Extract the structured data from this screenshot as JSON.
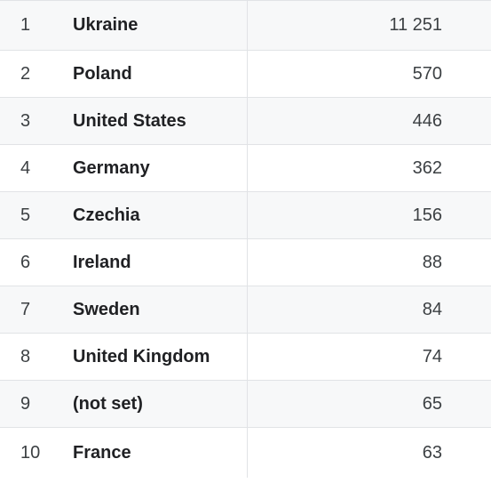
{
  "table": {
    "rows": [
      {
        "rank": "1",
        "country": "Ukraine",
        "value": "11 251"
      },
      {
        "rank": "2",
        "country": "Poland",
        "value": "570"
      },
      {
        "rank": "3",
        "country": "United States",
        "value": "446"
      },
      {
        "rank": "4",
        "country": "Germany",
        "value": "362"
      },
      {
        "rank": "5",
        "country": "Czechia",
        "value": "156"
      },
      {
        "rank": "6",
        "country": "Ireland",
        "value": "88"
      },
      {
        "rank": "7",
        "country": "Sweden",
        "value": "84"
      },
      {
        "rank": "8",
        "country": "United Kingdom",
        "value": "74"
      },
      {
        "rank": "9",
        "country": "(not set)",
        "value": "65"
      },
      {
        "rank": "10",
        "country": "France",
        "value": "63"
      }
    ]
  },
  "colors": {
    "row_alt_background": "#f7f8f9",
    "row_background": "#ffffff",
    "divider": "#e1e3e6",
    "text_primary": "#202124",
    "text_secondary": "#3c4043"
  }
}
